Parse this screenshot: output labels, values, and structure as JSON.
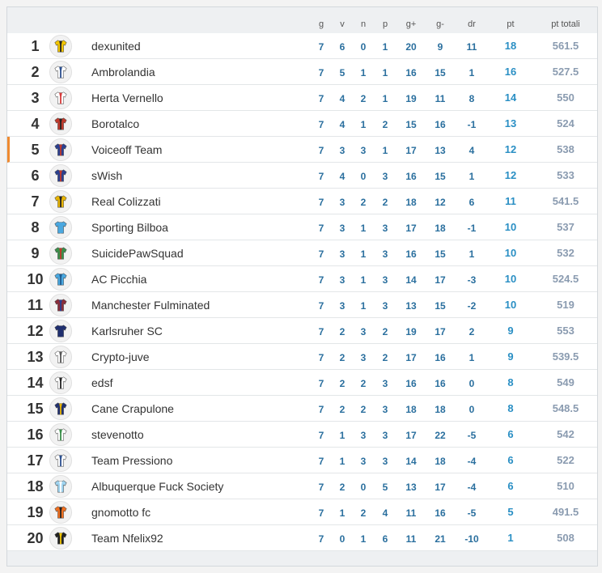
{
  "headers": {
    "g": "g",
    "v": "v",
    "n": "n",
    "p": "p",
    "gf": "g+",
    "ga": "g-",
    "dr": "dr",
    "pt": "pt",
    "ptt": "pt totali"
  },
  "rows": [
    {
      "pos": "1",
      "team": "dexunited",
      "g": "7",
      "v": "6",
      "n": "0",
      "p": "1",
      "gf": "20",
      "ga": "9",
      "dr": "11",
      "pt": "18",
      "ptt": "561.5",
      "c1": "#f2c500",
      "c2": "#222222"
    },
    {
      "pos": "2",
      "team": "Ambrolandia",
      "g": "7",
      "v": "5",
      "n": "1",
      "p": "1",
      "gf": "16",
      "ga": "15",
      "dr": "1",
      "pt": "16",
      "ptt": "527.5",
      "c1": "#ffffff",
      "c2": "#2b4f8f"
    },
    {
      "pos": "3",
      "team": "Herta Vernello",
      "g": "7",
      "v": "4",
      "n": "2",
      "p": "1",
      "gf": "19",
      "ga": "11",
      "dr": "8",
      "pt": "14",
      "ptt": "550",
      "c1": "#ffffff",
      "c2": "#d63a3a"
    },
    {
      "pos": "4",
      "team": "Borotalco",
      "g": "7",
      "v": "4",
      "n": "1",
      "p": "2",
      "gf": "15",
      "ga": "16",
      "dr": "-1",
      "pt": "13",
      "ptt": "524",
      "c1": "#c0392b",
      "c2": "#222222"
    },
    {
      "pos": "5",
      "team": "Voiceoff Team",
      "g": "7",
      "v": "3",
      "n": "3",
      "p": "1",
      "gf": "17",
      "ga": "13",
      "dr": "4",
      "pt": "12",
      "ptt": "538",
      "c1": "#2a3f8f",
      "c2": "#c0392b"
    },
    {
      "pos": "6",
      "team": "sWish",
      "g": "7",
      "v": "4",
      "n": "0",
      "p": "3",
      "gf": "16",
      "ga": "15",
      "dr": "1",
      "pt": "12",
      "ptt": "533",
      "c1": "#2a3f8f",
      "c2": "#c0392b"
    },
    {
      "pos": "7",
      "team": "Real Colizzati",
      "g": "7",
      "v": "3",
      "n": "2",
      "p": "2",
      "gf": "18",
      "ga": "12",
      "dr": "6",
      "pt": "11",
      "ptt": "541.5",
      "c1": "#e8b400",
      "c2": "#222222"
    },
    {
      "pos": "8",
      "team": "Sporting Bilboa",
      "g": "7",
      "v": "3",
      "n": "1",
      "p": "3",
      "gf": "17",
      "ga": "18",
      "dr": "-1",
      "pt": "10",
      "ptt": "537",
      "c1": "#4aa8e0",
      "c2": "#4aa8e0"
    },
    {
      "pos": "9",
      "team": "SuicidePawSquad",
      "g": "7",
      "v": "3",
      "n": "1",
      "p": "3",
      "gf": "16",
      "ga": "15",
      "dr": "1",
      "pt": "10",
      "ptt": "532",
      "c1": "#3a8f4a",
      "c2": "#c0392b"
    },
    {
      "pos": "10",
      "team": "AC Picchia",
      "g": "7",
      "v": "3",
      "n": "1",
      "p": "3",
      "gf": "14",
      "ga": "17",
      "dr": "-3",
      "pt": "10",
      "ptt": "524.5",
      "c1": "#4aa8e0",
      "c2": "#1d5b8f"
    },
    {
      "pos": "11",
      "team": "Manchester Fulminated",
      "g": "7",
      "v": "3",
      "n": "1",
      "p": "3",
      "gf": "13",
      "ga": "15",
      "dr": "-2",
      "pt": "10",
      "ptt": "519",
      "c1": "#8a2d3a",
      "c2": "#2a3f8f"
    },
    {
      "pos": "12",
      "team": "Karlsruher SC",
      "g": "7",
      "v": "2",
      "n": "3",
      "p": "2",
      "gf": "19",
      "ga": "17",
      "dr": "2",
      "pt": "9",
      "ptt": "553",
      "c1": "#1f2f6f",
      "c2": "#1f2f6f"
    },
    {
      "pos": "13",
      "team": "Crypto-juve",
      "g": "7",
      "v": "2",
      "n": "3",
      "p": "2",
      "gf": "17",
      "ga": "16",
      "dr": "1",
      "pt": "9",
      "ptt": "539.5",
      "c1": "#ffffff",
      "c2": "#555555"
    },
    {
      "pos": "14",
      "team": "edsf",
      "g": "7",
      "v": "2",
      "n": "2",
      "p": "3",
      "gf": "16",
      "ga": "16",
      "dr": "0",
      "pt": "8",
      "ptt": "549",
      "c1": "#ffffff",
      "c2": "#222222"
    },
    {
      "pos": "15",
      "team": "Cane Crapulone",
      "g": "7",
      "v": "2",
      "n": "2",
      "p": "3",
      "gf": "18",
      "ga": "18",
      "dr": "0",
      "pt": "8",
      "ptt": "548.5",
      "c1": "#1f2f6f",
      "c2": "#e8b400"
    },
    {
      "pos": "16",
      "team": "stevenotto",
      "g": "7",
      "v": "1",
      "n": "3",
      "p": "3",
      "gf": "17",
      "ga": "22",
      "dr": "-5",
      "pt": "6",
      "ptt": "542",
      "c1": "#ffffff",
      "c2": "#3a8f4a"
    },
    {
      "pos": "17",
      "team": "Team Pressiono",
      "g": "7",
      "v": "1",
      "n": "3",
      "p": "3",
      "gf": "14",
      "ga": "18",
      "dr": "-4",
      "pt": "6",
      "ptt": "522",
      "c1": "#ffffff",
      "c2": "#2b4f8f"
    },
    {
      "pos": "18",
      "team": "Albuquerque Fuck Society",
      "g": "7",
      "v": "2",
      "n": "0",
      "p": "5",
      "gf": "13",
      "ga": "17",
      "dr": "-4",
      "pt": "6",
      "ptt": "510",
      "c1": "#9fd3ef",
      "c2": "#ffffff"
    },
    {
      "pos": "19",
      "team": "gnomotto fc",
      "g": "7",
      "v": "1",
      "n": "2",
      "p": "4",
      "gf": "11",
      "ga": "16",
      "dr": "-5",
      "pt": "5",
      "ptt": "491.5",
      "c1": "#f07020",
      "c2": "#222222"
    },
    {
      "pos": "20",
      "team": "Team Nfelix92",
      "g": "7",
      "v": "0",
      "n": "1",
      "p": "6",
      "gf": "11",
      "ga": "21",
      "dr": "-10",
      "pt": "1",
      "ptt": "508",
      "c1": "#222222",
      "c2": "#f2c500"
    }
  ],
  "highlight_color": "#f08a30"
}
